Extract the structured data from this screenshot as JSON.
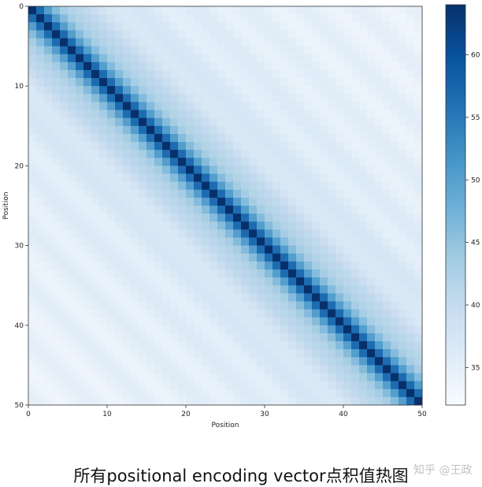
{
  "chart_data": {
    "type": "heatmap",
    "title": "",
    "xlabel": "Position",
    "ylabel": "Position",
    "rows": 50,
    "cols": 50,
    "x_range": [
      0,
      50
    ],
    "y_range": [
      0,
      50
    ],
    "x_ticks": [
      "0",
      "10",
      "20",
      "30",
      "40",
      "50"
    ],
    "y_ticks": [
      "0",
      "10",
      "20",
      "30",
      "40",
      "50"
    ],
    "value_range": [
      32,
      64
    ],
    "colorbar_ticks": [
      "35",
      "40",
      "45",
      "50",
      "55",
      "60"
    ],
    "colormap": "Blues",
    "colormap_stops": [
      "#f7fbff",
      "#deebf7",
      "#c6dbef",
      "#9ecae1",
      "#6baed6",
      "#4292c6",
      "#2171b5",
      "#08519c",
      "#08306b"
    ],
    "value_formula": "dot product of positional encoding vectors i and j; depends on |i-j|: 64 on the diagonal, about 55 at |i-j|=2, about 46 at |i-j|=5, about 40 at |i-j|=15, about 33 at |i-j|=49"
  },
  "caption": "所有positional encoding vector点积值热图",
  "watermark": "知乎 @王政"
}
